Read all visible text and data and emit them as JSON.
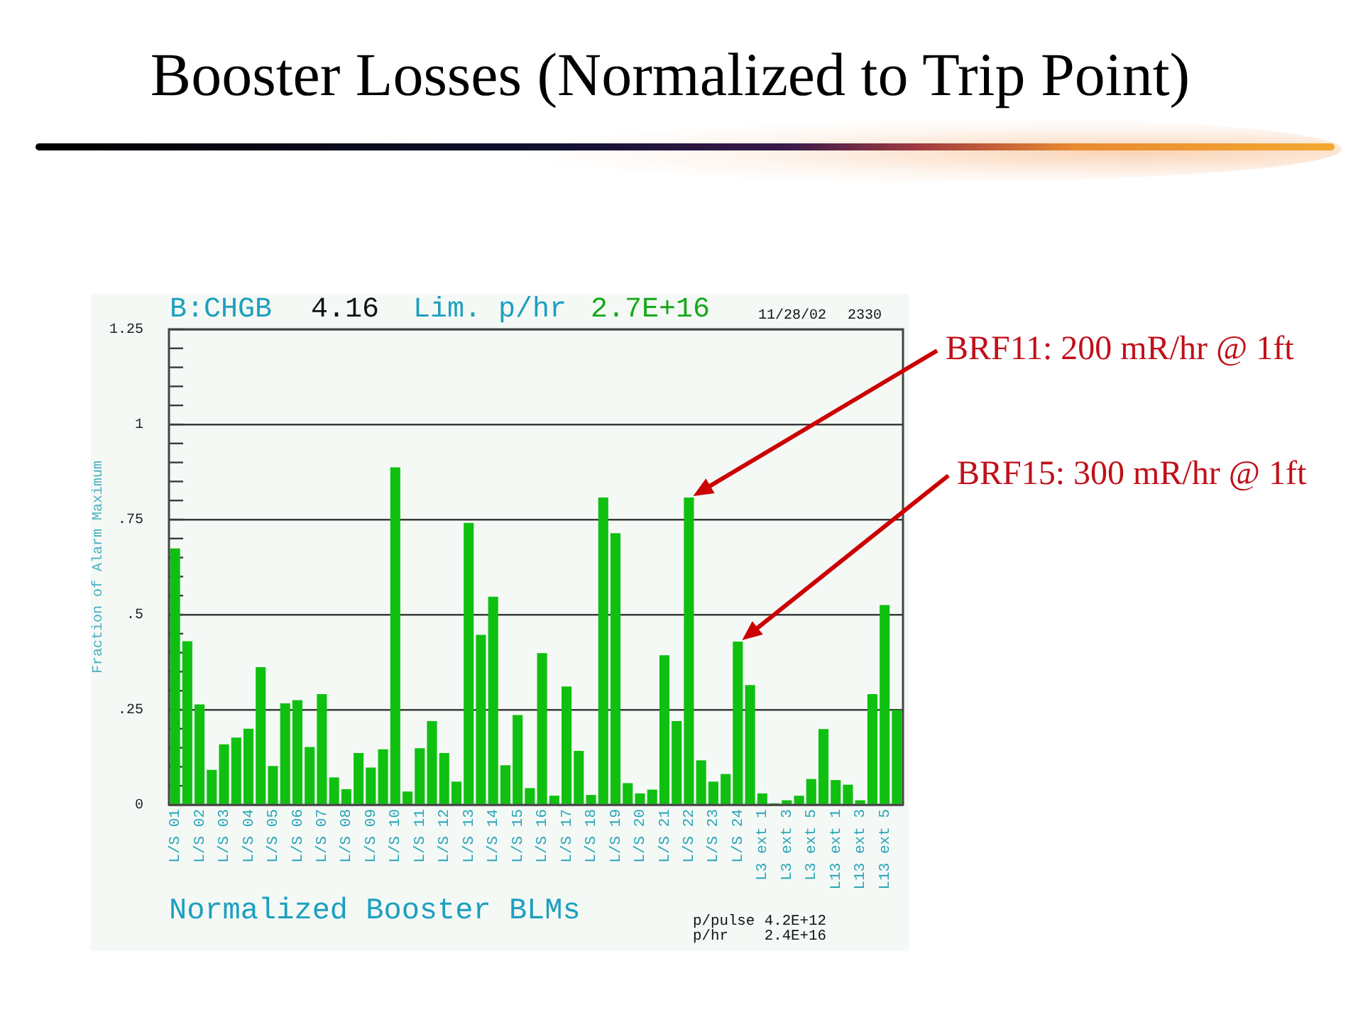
{
  "chart_data": {
    "type": "bar",
    "title": "Booster Losses (Normalized to Trip Point)",
    "xlabel": "Normalized Booster BLMs",
    "ylabel": "Fraction of Alarm Maximum",
    "categories": [
      "L/S 01",
      null,
      "L/S 02",
      null,
      "L/S 03",
      null,
      "L/S 04",
      null,
      "L/S 05",
      null,
      "L/S 06",
      null,
      "L/S 07",
      null,
      "L/S 08",
      null,
      "L/S 09",
      null,
      "L/S 10",
      null,
      "L/S 11",
      null,
      "L/S 12",
      null,
      "L/S 13",
      null,
      "L/S 14",
      null,
      "L/S 15",
      null,
      "L/S 16",
      null,
      "L/S 17",
      null,
      "L/S 18",
      null,
      "L/S 19",
      null,
      "L/S 20",
      null,
      "L/S 21",
      null,
      "L/S 22",
      null,
      "L/S 23",
      null,
      "L/S 24",
      null,
      "L3 ext 1",
      null,
      "L3 ext 3",
      null,
      "L3 ext 5",
      null,
      "L13 ext 1",
      null,
      "L13 ext 3",
      null,
      "L13 ext 5",
      null
    ],
    "values": [
      0.674,
      0.43,
      0.264,
      0.092,
      0.159,
      0.177,
      0.2,
      0.362,
      0.102,
      0.267,
      0.275,
      0.152,
      0.291,
      0.072,
      0.041,
      0.136,
      0.098,
      0.146,
      0.887,
      0.035,
      0.149,
      0.22,
      0.136,
      0.061,
      0.741,
      0.447,
      0.547,
      0.104,
      0.236,
      0.044,
      0.399,
      0.024,
      0.311,
      0.142,
      0.026,
      0.808,
      0.714,
      0.057,
      0.03,
      0.04,
      0.393,
      0.22,
      0.808,
      0.117,
      0.061,
      0.081,
      0.429,
      0.315,
      0.03,
      0.004,
      0.012,
      0.024,
      0.068,
      0.199,
      0.065,
      0.053,
      0.012,
      0.291,
      0.525,
      0.249
    ],
    "color": "#10c010",
    "ylim": [
      0,
      1.25
    ],
    "yticks": [
      0,
      {
        "value": 0.05,
        "label": null
      },
      {
        "value": 0.1,
        "label": null
      },
      {
        "value": 0.15,
        "label": null
      },
      {
        "value": 0.2,
        "label": null
      },
      {
        "value": 0.25,
        "label": ".25"
      },
      {
        "value": 0.3,
        "label": null
      },
      {
        "value": 0.35,
        "label": null
      },
      {
        "value": 0.4,
        "label": null
      },
      {
        "value": 0.45,
        "label": null
      },
      {
        "value": 0.5,
        "label": ".5"
      },
      {
        "value": 0.55,
        "label": null
      },
      {
        "value": 0.6,
        "label": null
      },
      {
        "value": 0.65,
        "label": null
      },
      {
        "value": 0.7,
        "label": null
      },
      {
        "value": 0.75,
        "label": ".75"
      },
      {
        "value": 0.8,
        "label": null
      },
      {
        "value": 0.85,
        "label": null
      },
      {
        "value": 0.9,
        "label": null
      },
      {
        "value": 0.95,
        "label": null
      },
      1,
      {
        "value": 1.05,
        "label": null
      },
      {
        "value": 1.1,
        "label": null
      },
      {
        "value": 1.15,
        "label": null
      },
      {
        "value": 1.2,
        "label": null
      },
      1.25
    ],
    "grid": "y",
    "annotations": [
      "B:CHGB",
      "4.16",
      "Lim. p/hr",
      "2.7E+16",
      "11/28/02",
      "2330",
      "p/pulse",
      "4.2E+12",
      "p/hr",
      "2.4E+16",
      {
        "text": "BRF11: 200 mR/hr @ 1ft",
        "x": "L/S 22",
        "y": 0.808
      },
      {
        "text": "BRF15: 300 mR/hr @ 1ft",
        "x": "L/S 24",
        "y": 0.429
      }
    ]
  }
}
